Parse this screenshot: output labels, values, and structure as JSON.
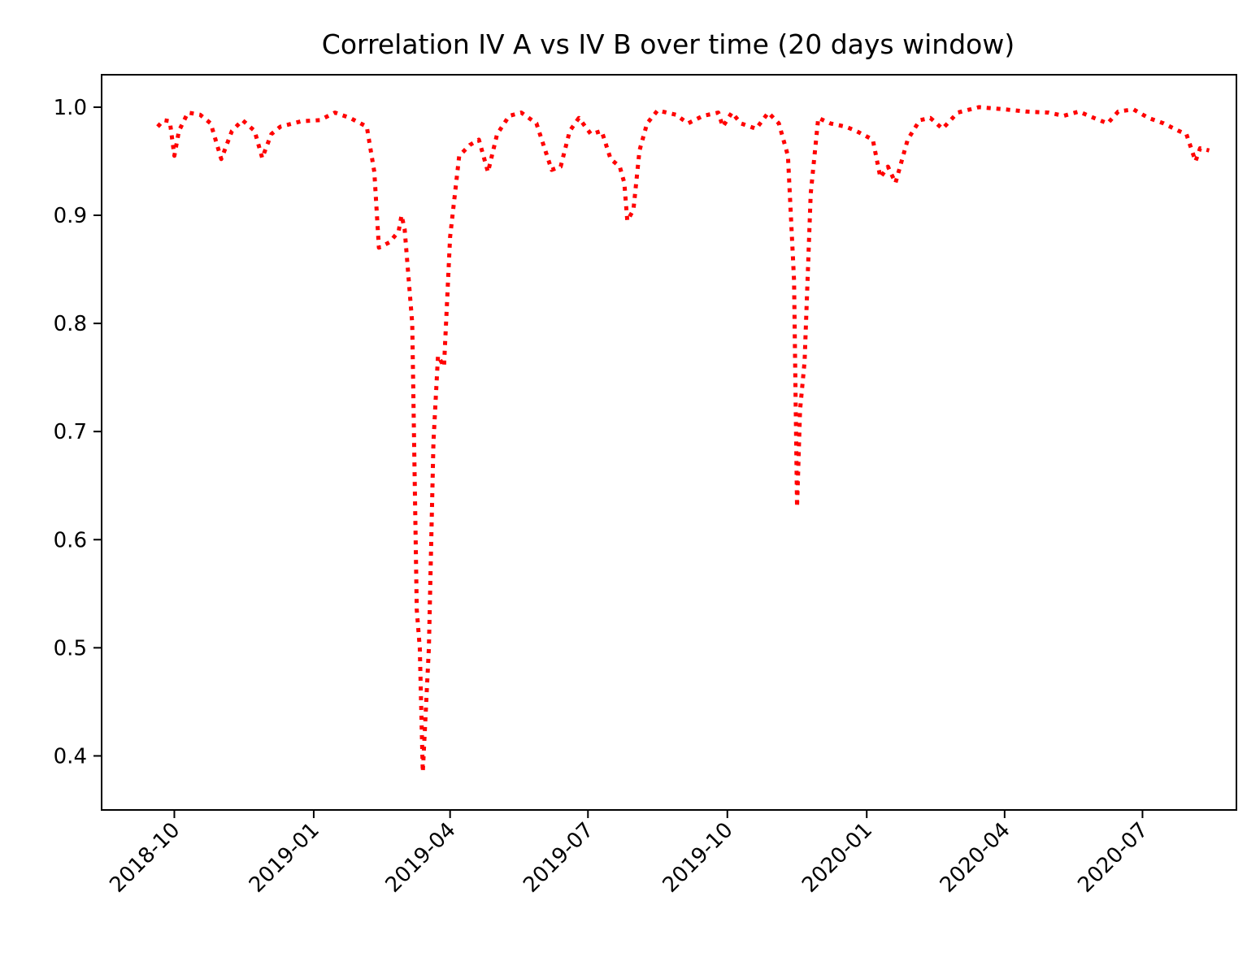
{
  "chart_data": {
    "type": "line",
    "title": "Correlation IV A vs IV B over time (20 days window)",
    "xlabel": "",
    "ylabel": "",
    "x_ticks": [
      "2018-10",
      "2019-01",
      "2019-04",
      "2019-07",
      "2019-10",
      "2020-01",
      "2020-04",
      "2020-07"
    ],
    "y_ticks": [
      "0.4",
      "0.5",
      "0.6",
      "0.7",
      "0.8",
      "0.9",
      "1.0"
    ],
    "xlim": [
      "2018-08-14",
      "2020-09-01"
    ],
    "ylim": [
      0.35,
      1.03
    ],
    "grid": false,
    "legend": "none",
    "series": [
      {
        "color": "#ff0000",
        "line_style": "dotted",
        "points": [
          [
            "2018-09-20",
            0.982
          ],
          [
            "2018-09-24",
            0.988
          ],
          [
            "2018-09-28",
            0.987
          ],
          [
            "2018-10-01",
            0.955
          ],
          [
            "2018-10-04",
            0.978
          ],
          [
            "2018-10-10",
            0.995
          ],
          [
            "2018-10-18",
            0.993
          ],
          [
            "2018-10-25",
            0.985
          ],
          [
            "2018-11-01",
            0.952
          ],
          [
            "2018-11-08",
            0.978
          ],
          [
            "2018-11-15",
            0.988
          ],
          [
            "2018-11-23",
            0.978
          ],
          [
            "2018-11-28",
            0.953
          ],
          [
            "2018-12-04",
            0.975
          ],
          [
            "2018-12-10",
            0.982
          ],
          [
            "2018-12-24",
            0.987
          ],
          [
            "2019-01-05",
            0.988
          ],
          [
            "2019-01-15",
            0.995
          ],
          [
            "2019-01-25",
            0.99
          ],
          [
            "2019-02-05",
            0.982
          ],
          [
            "2019-02-10",
            0.94
          ],
          [
            "2019-02-13",
            0.87
          ],
          [
            "2019-02-20",
            0.875
          ],
          [
            "2019-02-26",
            0.885
          ],
          [
            "2019-02-28",
            0.9
          ],
          [
            "2019-03-02",
            0.887
          ],
          [
            "2019-03-07",
            0.8
          ],
          [
            "2019-03-10",
            0.535
          ],
          [
            "2019-03-12",
            0.5
          ],
          [
            "2019-03-14",
            0.385
          ],
          [
            "2019-03-18",
            0.5
          ],
          [
            "2019-03-21",
            0.69
          ],
          [
            "2019-03-24",
            0.77
          ],
          [
            "2019-03-28",
            0.76
          ],
          [
            "2019-04-01",
            0.88
          ],
          [
            "2019-04-07",
            0.955
          ],
          [
            "2019-04-14",
            0.965
          ],
          [
            "2019-04-20",
            0.97
          ],
          [
            "2019-04-26",
            0.94
          ],
          [
            "2019-05-02",
            0.975
          ],
          [
            "2019-05-10",
            0.992
          ],
          [
            "2019-05-18",
            0.995
          ],
          [
            "2019-05-28",
            0.985
          ],
          [
            "2019-06-07",
            0.942
          ],
          [
            "2019-06-13",
            0.945
          ],
          [
            "2019-06-19",
            0.978
          ],
          [
            "2019-06-25",
            0.99
          ],
          [
            "2019-07-03",
            0.975
          ],
          [
            "2019-07-10",
            0.978
          ],
          [
            "2019-07-16",
            0.952
          ],
          [
            "2019-07-22",
            0.945
          ],
          [
            "2019-07-25",
            0.93
          ],
          [
            "2019-07-27",
            0.895
          ],
          [
            "2019-07-31",
            0.905
          ],
          [
            "2019-08-04",
            0.96
          ],
          [
            "2019-08-09",
            0.985
          ],
          [
            "2019-08-16",
            0.997
          ],
          [
            "2019-08-28",
            0.993
          ],
          [
            "2019-09-05",
            0.985
          ],
          [
            "2019-09-15",
            0.992
          ],
          [
            "2019-09-25",
            0.995
          ],
          [
            "2019-09-28",
            0.982
          ],
          [
            "2019-10-04",
            0.995
          ],
          [
            "2019-10-10",
            0.985
          ],
          [
            "2019-10-20",
            0.98
          ],
          [
            "2019-10-28",
            0.995
          ],
          [
            "2019-11-04",
            0.985
          ],
          [
            "2019-11-10",
            0.955
          ],
          [
            "2019-11-14",
            0.84
          ],
          [
            "2019-11-16",
            0.63
          ],
          [
            "2019-11-18",
            0.72
          ],
          [
            "2019-11-21",
            0.765
          ],
          [
            "2019-11-25",
            0.92
          ],
          [
            "2019-11-30",
            0.99
          ],
          [
            "2019-12-08",
            0.985
          ],
          [
            "2019-12-18",
            0.982
          ],
          [
            "2019-12-25",
            0.978
          ],
          [
            "2020-01-05",
            0.97
          ],
          [
            "2020-01-10",
            0.935
          ],
          [
            "2020-01-15",
            0.945
          ],
          [
            "2020-01-20",
            0.93
          ],
          [
            "2020-01-28",
            0.97
          ],
          [
            "2020-02-05",
            0.988
          ],
          [
            "2020-02-12",
            0.99
          ],
          [
            "2020-02-20",
            0.98
          ],
          [
            "2020-03-01",
            0.995
          ],
          [
            "2020-03-15",
            1.0
          ],
          [
            "2020-04-01",
            0.998
          ],
          [
            "2020-04-15",
            0.996
          ],
          [
            "2020-04-30",
            0.995
          ],
          [
            "2020-05-10",
            0.992
          ],
          [
            "2020-05-20",
            0.996
          ],
          [
            "2020-05-30",
            0.99
          ],
          [
            "2020-06-08",
            0.985
          ],
          [
            "2020-06-15",
            0.996
          ],
          [
            "2020-06-25",
            0.998
          ],
          [
            "2020-07-05",
            0.99
          ],
          [
            "2020-07-15",
            0.985
          ],
          [
            "2020-07-25",
            0.978
          ],
          [
            "2020-07-30",
            0.975
          ],
          [
            "2020-08-05",
            0.95
          ],
          [
            "2020-08-08",
            0.962
          ],
          [
            "2020-08-14",
            0.96
          ]
        ]
      }
    ]
  }
}
